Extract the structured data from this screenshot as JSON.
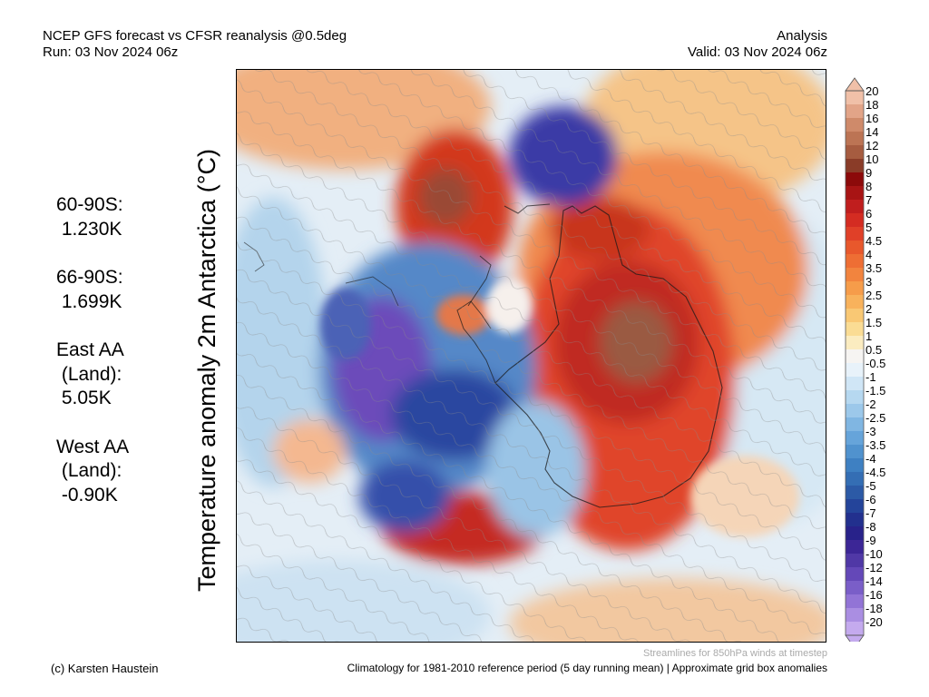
{
  "header": {
    "title": "NCEP GFS forecast vs CFSR reanalysis @0.5deg",
    "run": "Run: 03 Nov 2024 06z",
    "mode": "Analysis",
    "valid": "Valid: 03 Nov 2024 06z"
  },
  "map": {
    "ylabel": "Temperature anomaly 2m Antarctica (°C)",
    "stats": [
      {
        "lines": [
          "60-90S:",
          " 1.230K"
        ]
      },
      {
        "lines": [
          "66-90S:",
          " 1.699K"
        ]
      },
      {
        "lines": [
          "East AA",
          " (Land):",
          " 5.05K"
        ]
      },
      {
        "lines": [
          "West AA",
          " (Land):",
          " -0.90K"
        ]
      }
    ]
  },
  "colorbar": {
    "labels": [
      "20",
      "18",
      "16",
      "14",
      "12",
      "10",
      "9",
      "8",
      "7",
      "6",
      "5",
      "4.5",
      "4",
      "3.5",
      "3",
      "2.5",
      "2",
      "1.5",
      "1",
      "0.5",
      "-0.5",
      "-1",
      "-1.5",
      "-2",
      "-2.5",
      "-3",
      "-3.5",
      "-4",
      "-4.5",
      "-5",
      "-6",
      "-7",
      "-8",
      "-9",
      "-10",
      "-12",
      "-14",
      "-16",
      "-18",
      "-20"
    ],
    "colors": [
      "#f0c0a8",
      "#e2a488",
      "#cf8a6a",
      "#bc7454",
      "#a65c40",
      "#8a3c28",
      "#8c0a0a",
      "#a81414",
      "#c01e1e",
      "#d42c22",
      "#e04028",
      "#e8582c",
      "#ee6e34",
      "#f2843e",
      "#f69c4a",
      "#f8b25c",
      "#f9c874",
      "#fadc94",
      "#fbecc0",
      "#f6f4f2",
      "#e8f2fa",
      "#d0e6f6",
      "#b6d8f0",
      "#9cc8ea",
      "#80b6e2",
      "#66a4da",
      "#5092ce",
      "#3e80c2",
      "#346eb4",
      "#2c5aa6",
      "#24449a",
      "#22308e",
      "#28228a",
      "#3c2696",
      "#5038a6",
      "#6448b8",
      "#7a5ec8",
      "#9274d6",
      "#aa8ee2",
      "#c4aaee"
    ]
  },
  "footer": {
    "credit": "(c) Karsten Haustein",
    "streamlines": "Streamlines for 850hPa winds at timestep",
    "climatology": "Climatology for 1981-2010 reference period (5 day running mean) | Approximate grid box anomalies"
  }
}
